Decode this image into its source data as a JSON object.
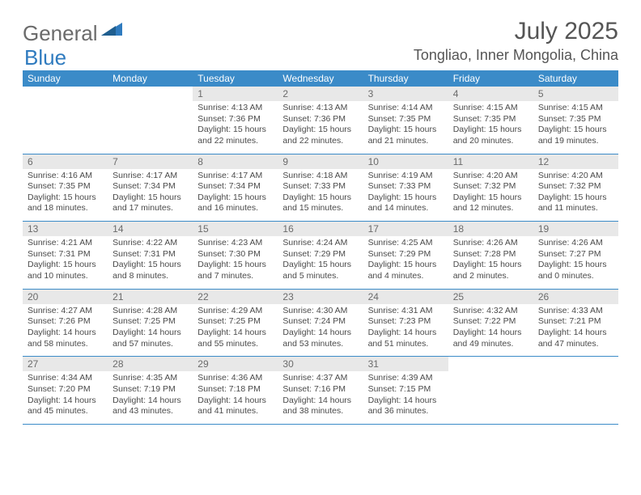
{
  "brand": {
    "text1": "General",
    "text2": "Blue"
  },
  "title": "July 2025",
  "location": "Tongliao, Inner Mongolia, China",
  "colors": {
    "header_bar": "#3b8bc8",
    "daynum_bg": "#e8e8e8",
    "text_gray": "#555555",
    "logo_gray": "#6b6b6b",
    "logo_blue": "#2f7bbf"
  },
  "days_of_week": [
    "Sunday",
    "Monday",
    "Tuesday",
    "Wednesday",
    "Thursday",
    "Friday",
    "Saturday"
  ],
  "weeks": [
    [
      null,
      null,
      {
        "n": "1",
        "sr": "4:13 AM",
        "ss": "7:36 PM",
        "dh": "15",
        "dm": "22"
      },
      {
        "n": "2",
        "sr": "4:13 AM",
        "ss": "7:36 PM",
        "dh": "15",
        "dm": "22"
      },
      {
        "n": "3",
        "sr": "4:14 AM",
        "ss": "7:35 PM",
        "dh": "15",
        "dm": "21"
      },
      {
        "n": "4",
        "sr": "4:15 AM",
        "ss": "7:35 PM",
        "dh": "15",
        "dm": "20"
      },
      {
        "n": "5",
        "sr": "4:15 AM",
        "ss": "7:35 PM",
        "dh": "15",
        "dm": "19"
      }
    ],
    [
      {
        "n": "6",
        "sr": "4:16 AM",
        "ss": "7:35 PM",
        "dh": "15",
        "dm": "18"
      },
      {
        "n": "7",
        "sr": "4:17 AM",
        "ss": "7:34 PM",
        "dh": "15",
        "dm": "17"
      },
      {
        "n": "8",
        "sr": "4:17 AM",
        "ss": "7:34 PM",
        "dh": "15",
        "dm": "16"
      },
      {
        "n": "9",
        "sr": "4:18 AM",
        "ss": "7:33 PM",
        "dh": "15",
        "dm": "15"
      },
      {
        "n": "10",
        "sr": "4:19 AM",
        "ss": "7:33 PM",
        "dh": "15",
        "dm": "14"
      },
      {
        "n": "11",
        "sr": "4:20 AM",
        "ss": "7:32 PM",
        "dh": "15",
        "dm": "12"
      },
      {
        "n": "12",
        "sr": "4:20 AM",
        "ss": "7:32 PM",
        "dh": "15",
        "dm": "11"
      }
    ],
    [
      {
        "n": "13",
        "sr": "4:21 AM",
        "ss": "7:31 PM",
        "dh": "15",
        "dm": "10"
      },
      {
        "n": "14",
        "sr": "4:22 AM",
        "ss": "7:31 PM",
        "dh": "15",
        "dm": "8"
      },
      {
        "n": "15",
        "sr": "4:23 AM",
        "ss": "7:30 PM",
        "dh": "15",
        "dm": "7"
      },
      {
        "n": "16",
        "sr": "4:24 AM",
        "ss": "7:29 PM",
        "dh": "15",
        "dm": "5"
      },
      {
        "n": "17",
        "sr": "4:25 AM",
        "ss": "7:29 PM",
        "dh": "15",
        "dm": "4"
      },
      {
        "n": "18",
        "sr": "4:26 AM",
        "ss": "7:28 PM",
        "dh": "15",
        "dm": "2"
      },
      {
        "n": "19",
        "sr": "4:26 AM",
        "ss": "7:27 PM",
        "dh": "15",
        "dm": "0"
      }
    ],
    [
      {
        "n": "20",
        "sr": "4:27 AM",
        "ss": "7:26 PM",
        "dh": "14",
        "dm": "58"
      },
      {
        "n": "21",
        "sr": "4:28 AM",
        "ss": "7:25 PM",
        "dh": "14",
        "dm": "57"
      },
      {
        "n": "22",
        "sr": "4:29 AM",
        "ss": "7:25 PM",
        "dh": "14",
        "dm": "55"
      },
      {
        "n": "23",
        "sr": "4:30 AM",
        "ss": "7:24 PM",
        "dh": "14",
        "dm": "53"
      },
      {
        "n": "24",
        "sr": "4:31 AM",
        "ss": "7:23 PM",
        "dh": "14",
        "dm": "51"
      },
      {
        "n": "25",
        "sr": "4:32 AM",
        "ss": "7:22 PM",
        "dh": "14",
        "dm": "49"
      },
      {
        "n": "26",
        "sr": "4:33 AM",
        "ss": "7:21 PM",
        "dh": "14",
        "dm": "47"
      }
    ],
    [
      {
        "n": "27",
        "sr": "4:34 AM",
        "ss": "7:20 PM",
        "dh": "14",
        "dm": "45"
      },
      {
        "n": "28",
        "sr": "4:35 AM",
        "ss": "7:19 PM",
        "dh": "14",
        "dm": "43"
      },
      {
        "n": "29",
        "sr": "4:36 AM",
        "ss": "7:18 PM",
        "dh": "14",
        "dm": "41"
      },
      {
        "n": "30",
        "sr": "4:37 AM",
        "ss": "7:16 PM",
        "dh": "14",
        "dm": "38"
      },
      {
        "n": "31",
        "sr": "4:39 AM",
        "ss": "7:15 PM",
        "dh": "14",
        "dm": "36"
      },
      null,
      null
    ]
  ],
  "labels": {
    "sunrise": "Sunrise:",
    "sunset": "Sunset:",
    "daylight": "Daylight:",
    "hours": "hours",
    "and": "and",
    "minutes": "minutes."
  }
}
